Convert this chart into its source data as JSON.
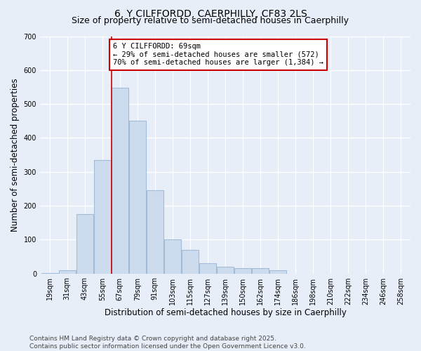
{
  "title": "6, Y CILFFORDD, CAERPHILLY, CF83 2LS",
  "subtitle": "Size of property relative to semi-detached houses in Caerphilly",
  "xlabel": "Distribution of semi-detached houses by size in Caerphilly",
  "ylabel": "Number of semi-detached properties",
  "categories": [
    "19sqm",
    "31sqm",
    "43sqm",
    "55sqm",
    "67sqm",
    "79sqm",
    "91sqm",
    "103sqm",
    "115sqm",
    "127sqm",
    "139sqm",
    "150sqm",
    "162sqm",
    "174sqm",
    "186sqm",
    "198sqm",
    "210sqm",
    "222sqm",
    "234sqm",
    "246sqm",
    "258sqm"
  ],
  "values": [
    2,
    10,
    175,
    335,
    548,
    450,
    245,
    100,
    70,
    30,
    20,
    15,
    15,
    10,
    0,
    0,
    0,
    0,
    0,
    0,
    0
  ],
  "bar_color": "#ccdcee",
  "bar_edge_color": "#a0bcd8",
  "highlight_bar_index": 4,
  "highlight_line_color": "#cc0000",
  "annotation_text": "6 Y CILFFORDD: 69sqm\n← 29% of semi-detached houses are smaller (572)\n70% of semi-detached houses are larger (1,384) →",
  "annotation_box_color": "#cc0000",
  "ylim": [
    0,
    700
  ],
  "yticks": [
    0,
    100,
    200,
    300,
    400,
    500,
    600,
    700
  ],
  "footnote": "Contains HM Land Registry data © Crown copyright and database right 2025.\nContains public sector information licensed under the Open Government Licence v3.0.",
  "bg_color": "#e8eef8",
  "plot_bg_color": "#e8eef8",
  "grid_color": "#ffffff",
  "title_fontsize": 10,
  "subtitle_fontsize": 9,
  "axis_label_fontsize": 8.5,
  "tick_fontsize": 7,
  "annotation_fontsize": 7.5,
  "footnote_fontsize": 6.5
}
